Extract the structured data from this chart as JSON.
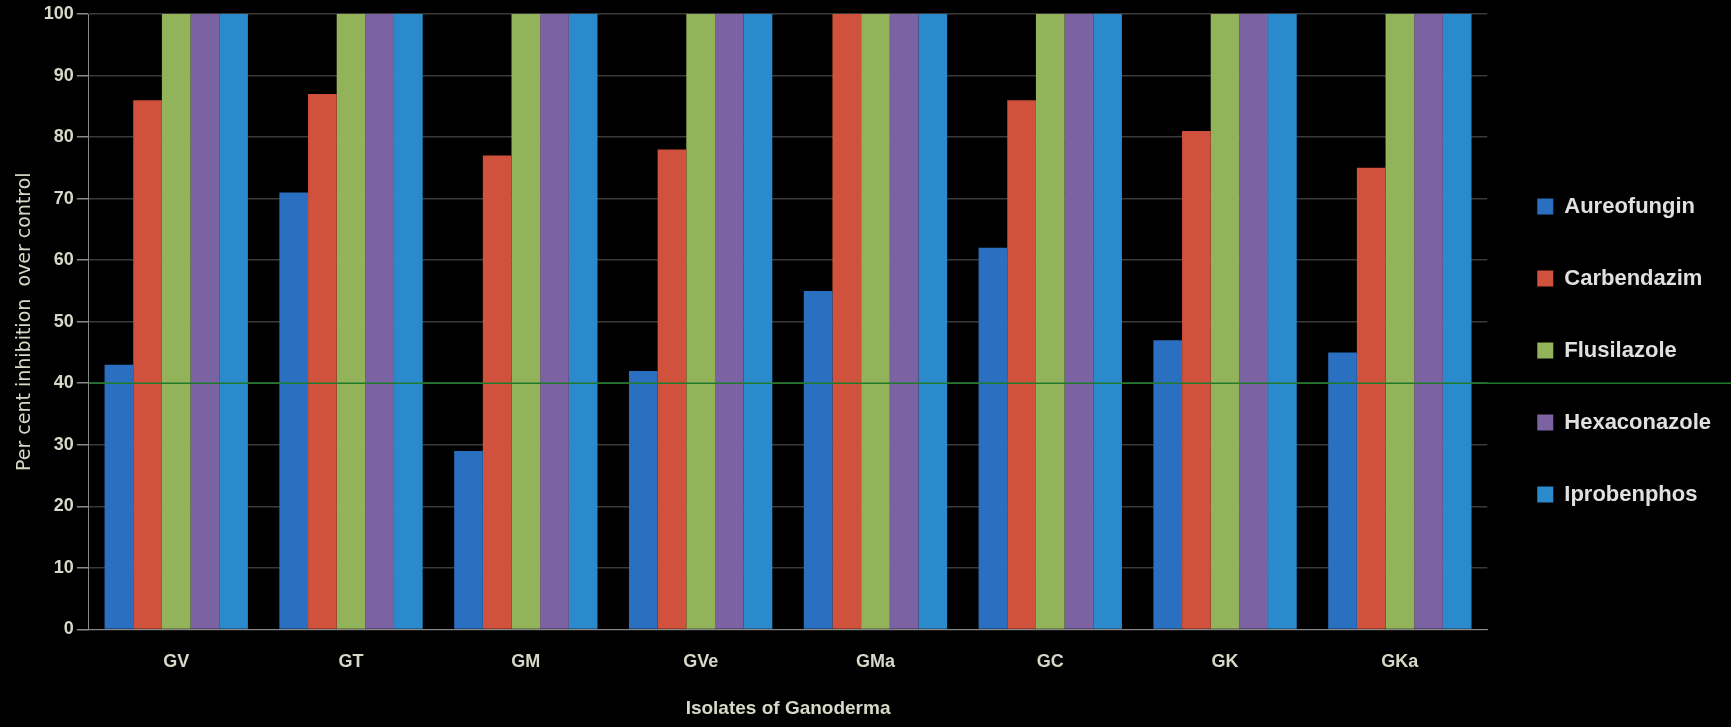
{
  "chart_data": {
    "type": "bar",
    "xlabel": "Isolates of Ganoderma",
    "ylabel": "Per cent inhibition  over control",
    "categories": [
      "GV",
      "GT",
      "GM",
      "GVe",
      "GMa",
      "GC",
      "GK",
      "GKa"
    ],
    "series": [
      {
        "name": "Aureofungin",
        "color": "#2a6fc0",
        "values": [
          43,
          71,
          29,
          42,
          55,
          62,
          47,
          45
        ]
      },
      {
        "name": "Carbendazim",
        "color": "#d0513c",
        "values": [
          86,
          87,
          77,
          78,
          100,
          86,
          81,
          75
        ]
      },
      {
        "name": "Flusilazole",
        "color": "#93b35a",
        "values": [
          100,
          100,
          100,
          100,
          100,
          100,
          100,
          100
        ]
      },
      {
        "name": "Hexaconazole",
        "color": "#7b62a3",
        "values": [
          100,
          100,
          100,
          100,
          100,
          100,
          100,
          100
        ]
      },
      {
        "name": "Iprobenphos",
        "color": "#2a8acb",
        "values": [
          100,
          100,
          100,
          100,
          100,
          100,
          100,
          100
        ]
      }
    ],
    "ylim": [
      0,
      100
    ],
    "yticks": [
      0,
      10,
      20,
      30,
      40,
      50,
      60,
      70,
      80,
      90,
      100
    ],
    "grid": "y",
    "legend": "right",
    "ref_lines": [
      {
        "axis": "y",
        "value": 40,
        "color": "#1f7a2a"
      }
    ]
  }
}
